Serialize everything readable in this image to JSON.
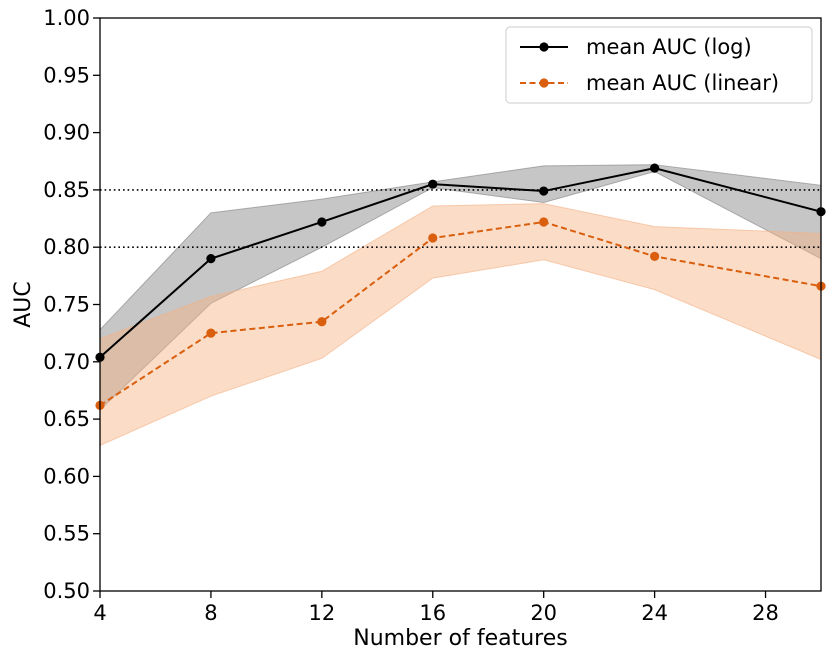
{
  "chart_data": {
    "type": "line",
    "title": "",
    "xlabel": "Number of features",
    "ylabel": "AUC",
    "xlim": [
      4,
      30
    ],
    "ylim": [
      0.5,
      1.0
    ],
    "xticks": [
      4,
      8,
      12,
      16,
      20,
      24,
      28
    ],
    "xtick_labels": [
      "4",
      "8",
      "12",
      "16",
      "20",
      "24",
      "28"
    ],
    "yticks": [
      0.5,
      0.55,
      0.6,
      0.65,
      0.7,
      0.75,
      0.8,
      0.85,
      0.9,
      0.95,
      1.0
    ],
    "ytick_labels": [
      "0.50",
      "0.55",
      "0.60",
      "0.65",
      "0.70",
      "0.75",
      "0.80",
      "0.85",
      "0.90",
      "0.95",
      "1.00"
    ],
    "grid": false,
    "legend_position": "top-right",
    "reference_lines": [
      0.85,
      0.8
    ],
    "x": [
      4,
      8,
      12,
      16,
      20,
      24,
      30
    ],
    "series": [
      {
        "name": "mean AUC (log)",
        "color": "#000000",
        "fill_color": "#808080",
        "line_style": "solid",
        "values": [
          0.704,
          0.79,
          0.822,
          0.855,
          0.849,
          0.869,
          0.831
        ],
        "lower": [
          0.658,
          0.751,
          0.8,
          0.852,
          0.839,
          0.866,
          0.79
        ],
        "upper": [
          0.728,
          0.83,
          0.842,
          0.857,
          0.871,
          0.872,
          0.854
        ]
      },
      {
        "name": "mean AUC (linear)",
        "color": "#d95f0e",
        "fill_color": "#f4b183",
        "line_style": "dashed",
        "values": [
          0.662,
          0.725,
          0.735,
          0.808,
          0.822,
          0.792,
          0.766
        ],
        "lower": [
          0.627,
          0.67,
          0.703,
          0.773,
          0.789,
          0.763,
          0.702
        ],
        "upper": [
          0.72,
          0.757,
          0.779,
          0.836,
          0.838,
          0.818,
          0.812
        ]
      }
    ]
  }
}
